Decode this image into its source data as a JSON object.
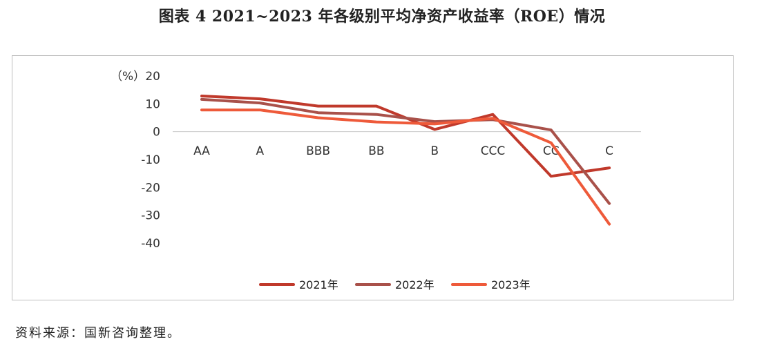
{
  "title": "图表 4  2021~2023 年各级别平均净资产收益率（ROE）情况",
  "source": "资料来源：国新咨询整理。",
  "chart_data": {
    "type": "line",
    "unit_label": "（%）",
    "categories": [
      "AA",
      "A",
      "BBB",
      "BB",
      "B",
      "CCC",
      "CC",
      "C"
    ],
    "yticks": [
      20,
      10,
      0,
      -10,
      -20,
      -30,
      -40
    ],
    "ylim": [
      -40,
      20
    ],
    "grid": false,
    "legend_position": "bottom",
    "series": [
      {
        "name": "2021年",
        "color": "#c0392b",
        "values": [
          12.8,
          11.8,
          9.2,
          9.2,
          0.8,
          6.2,
          -16.0,
          -13.0
        ]
      },
      {
        "name": "2022年",
        "color": "#a9514a",
        "values": [
          11.6,
          10.3,
          6.8,
          6.2,
          3.6,
          4.3,
          0.6,
          -25.8
        ]
      },
      {
        "name": "2023年",
        "color": "#ee5a3a",
        "values": [
          7.8,
          7.8,
          5.0,
          3.5,
          2.8,
          4.8,
          -4.0,
          -33.2
        ]
      }
    ]
  }
}
